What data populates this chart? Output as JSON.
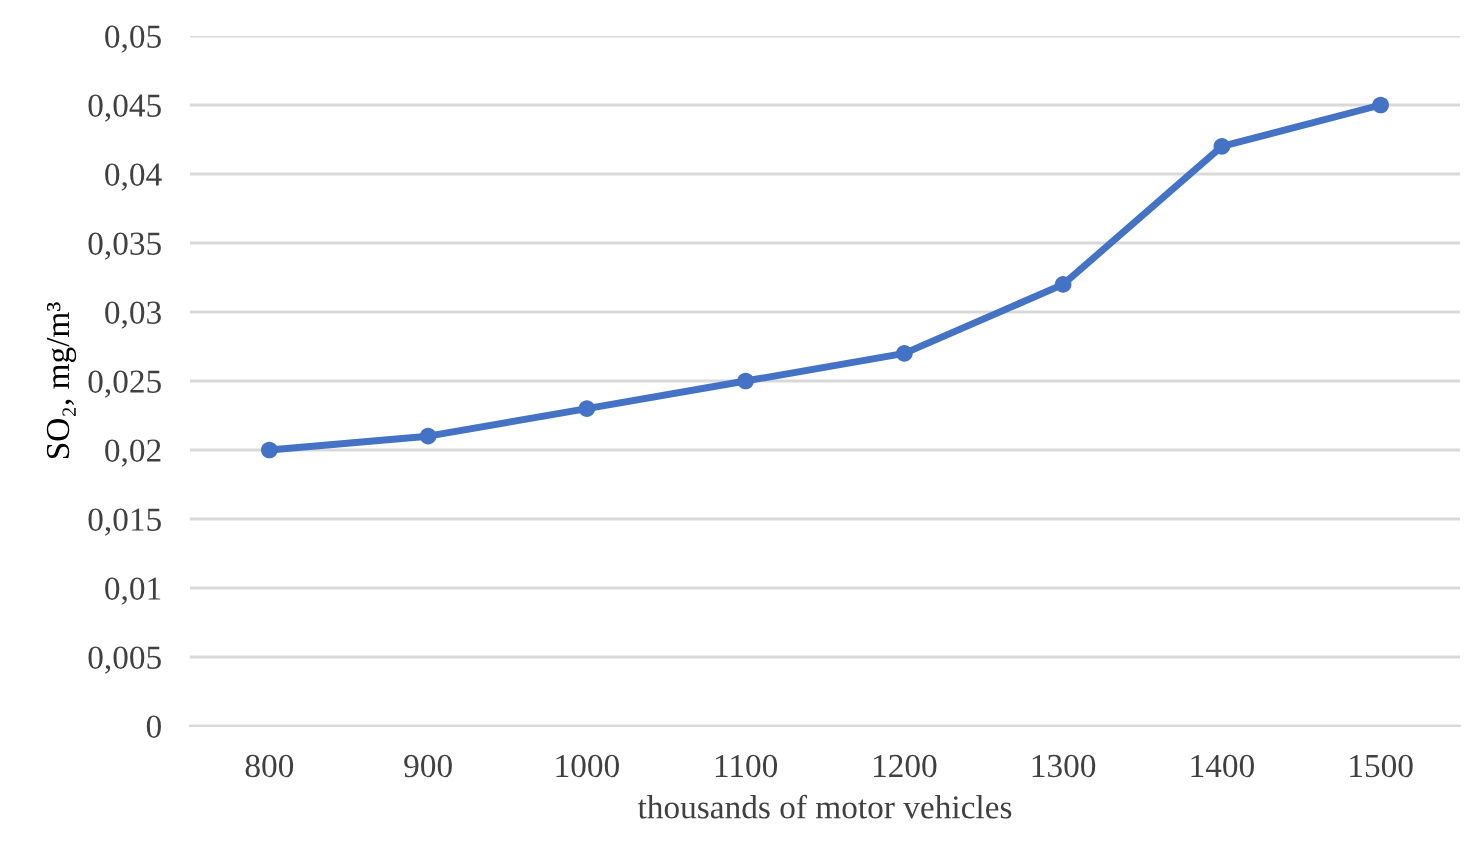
{
  "chart_data": {
    "type": "line",
    "xlabel": "thousands of motor vehicles",
    "ylabel": "SO₂, mg/m³",
    "categories": [
      "800",
      "900",
      "1000",
      "1100",
      "1200",
      "1300",
      "1400",
      "1500"
    ],
    "series": [
      {
        "color": "#4472c4",
        "values": [
          0.02,
          0.021,
          0.023,
          0.025,
          0.027,
          0.032,
          0.042,
          0.045
        ]
      }
    ],
    "ylim": [
      0,
      0.05
    ],
    "yticks": [
      {
        "value": 0,
        "label": "0"
      },
      {
        "value": 0.005,
        "label": "0,005"
      },
      {
        "value": 0.01,
        "label": "0,01"
      },
      {
        "value": 0.015,
        "label": "0,015"
      },
      {
        "value": 0.02,
        "label": "0,02"
      },
      {
        "value": 0.025,
        "label": "0,025"
      },
      {
        "value": 0.03,
        "label": "0,03"
      },
      {
        "value": 0.035,
        "label": "0,035"
      },
      {
        "value": 0.04,
        "label": "0,04"
      },
      {
        "value": 0.045,
        "label": "0,045"
      },
      {
        "value": 0.05,
        "label": "0,05"
      }
    ],
    "grid": "y",
    "marker": "circle",
    "line_style": "solid"
  }
}
